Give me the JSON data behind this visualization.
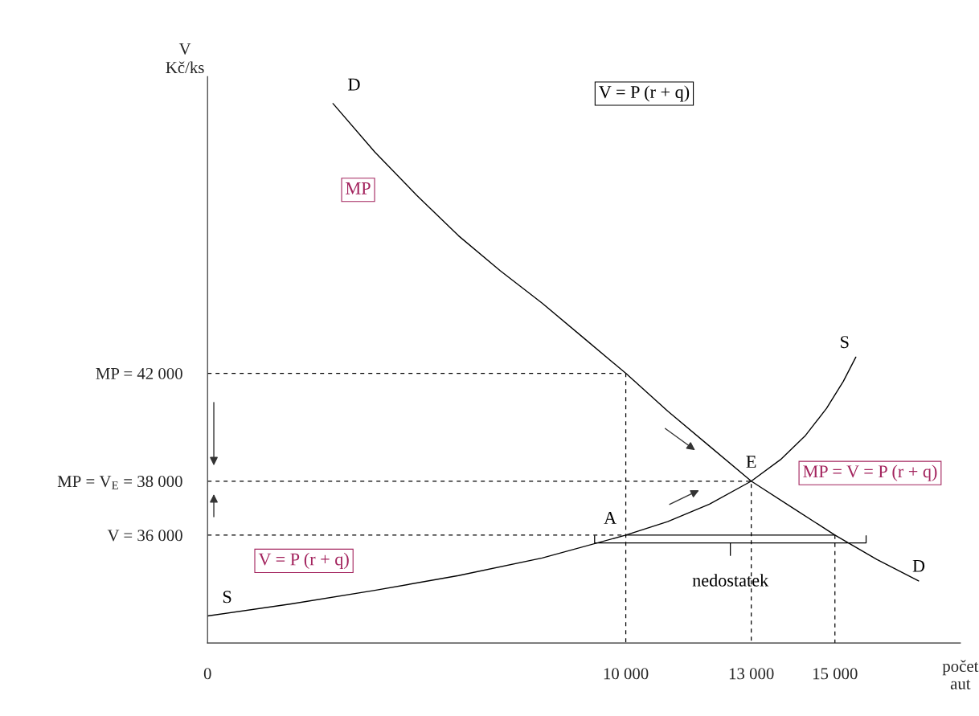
{
  "chart_data": {
    "type": "line",
    "ylabel": "V\nKč/ks",
    "xlabel": "počet\naut",
    "xlim": [
      0,
      18000
    ],
    "ylim": [
      32000,
      53000
    ],
    "xticks": [
      {
        "value": 0,
        "label": "0"
      },
      {
        "value": 10000,
        "label": "10 000"
      },
      {
        "value": 13000,
        "label": "13 000"
      },
      {
        "value": 15000,
        "label": "15 000"
      }
    ],
    "yticks": [
      {
        "value": 42000,
        "label": "MP = 42 000"
      },
      {
        "value": 38000,
        "label": "MP = V$_{E}$ = 38 000"
      },
      {
        "value": 36000,
        "label": "V = 36 000"
      }
    ],
    "grid": false,
    "marker": "none",
    "series": [
      {
        "name": "D",
        "color": "#000000",
        "x": [
          3000,
          4000,
          5000,
          6000,
          7000,
          8000,
          9000,
          10000,
          11000,
          12000,
          13000,
          14000,
          15000,
          16000,
          17000
        ],
        "values": [
          52000,
          50200,
          48600,
          47100,
          45800,
          44600,
          43300,
          42000,
          40600,
          39300,
          38000,
          37000,
          36000,
          35100,
          34300
        ]
      },
      {
        "name": "S",
        "color": "#000000",
        "x": [
          0,
          2000,
          4000,
          6000,
          8000,
          10000,
          11000,
          12000,
          13000,
          13700,
          14300,
          14800,
          15200,
          15500
        ],
        "values": [
          33000,
          33450,
          33950,
          34500,
          35150,
          36000,
          36500,
          37150,
          38000,
          38800,
          39700,
          40700,
          41700,
          42600
        ]
      },
      {
        "color": "#000000",
        "line_style": "dashed",
        "x": [
          0,
          10000,
          10000
        ],
        "values": [
          42000,
          42000,
          32000
        ]
      },
      {
        "color": "#000000",
        "line_style": "dashed",
        "x": [
          0,
          13000,
          13000
        ],
        "values": [
          38000,
          38000,
          32000
        ]
      },
      {
        "color": "#000000",
        "line_style": "dashed",
        "x": [
          0,
          10000
        ],
        "values": [
          36000,
          36000
        ]
      },
      {
        "color": "#000000",
        "line_style": "dashed",
        "x": [
          15000,
          15000
        ],
        "values": [
          36000,
          32000
        ]
      },
      {
        "color": "#000000",
        "line_style": "solid",
        "x": [
          10000,
          15000
        ],
        "values": [
          36000,
          36000
        ]
      }
    ],
    "annotations": [
      "V = P (r + q)",
      "MP",
      "MP = V = P (r + q)",
      "V = P (r + q)",
      {
        "text": "E",
        "x": 13000,
        "y": 38000
      },
      {
        "text": "A",
        "x": 10000,
        "y": 36000
      },
      "nedostatek"
    ]
  }
}
